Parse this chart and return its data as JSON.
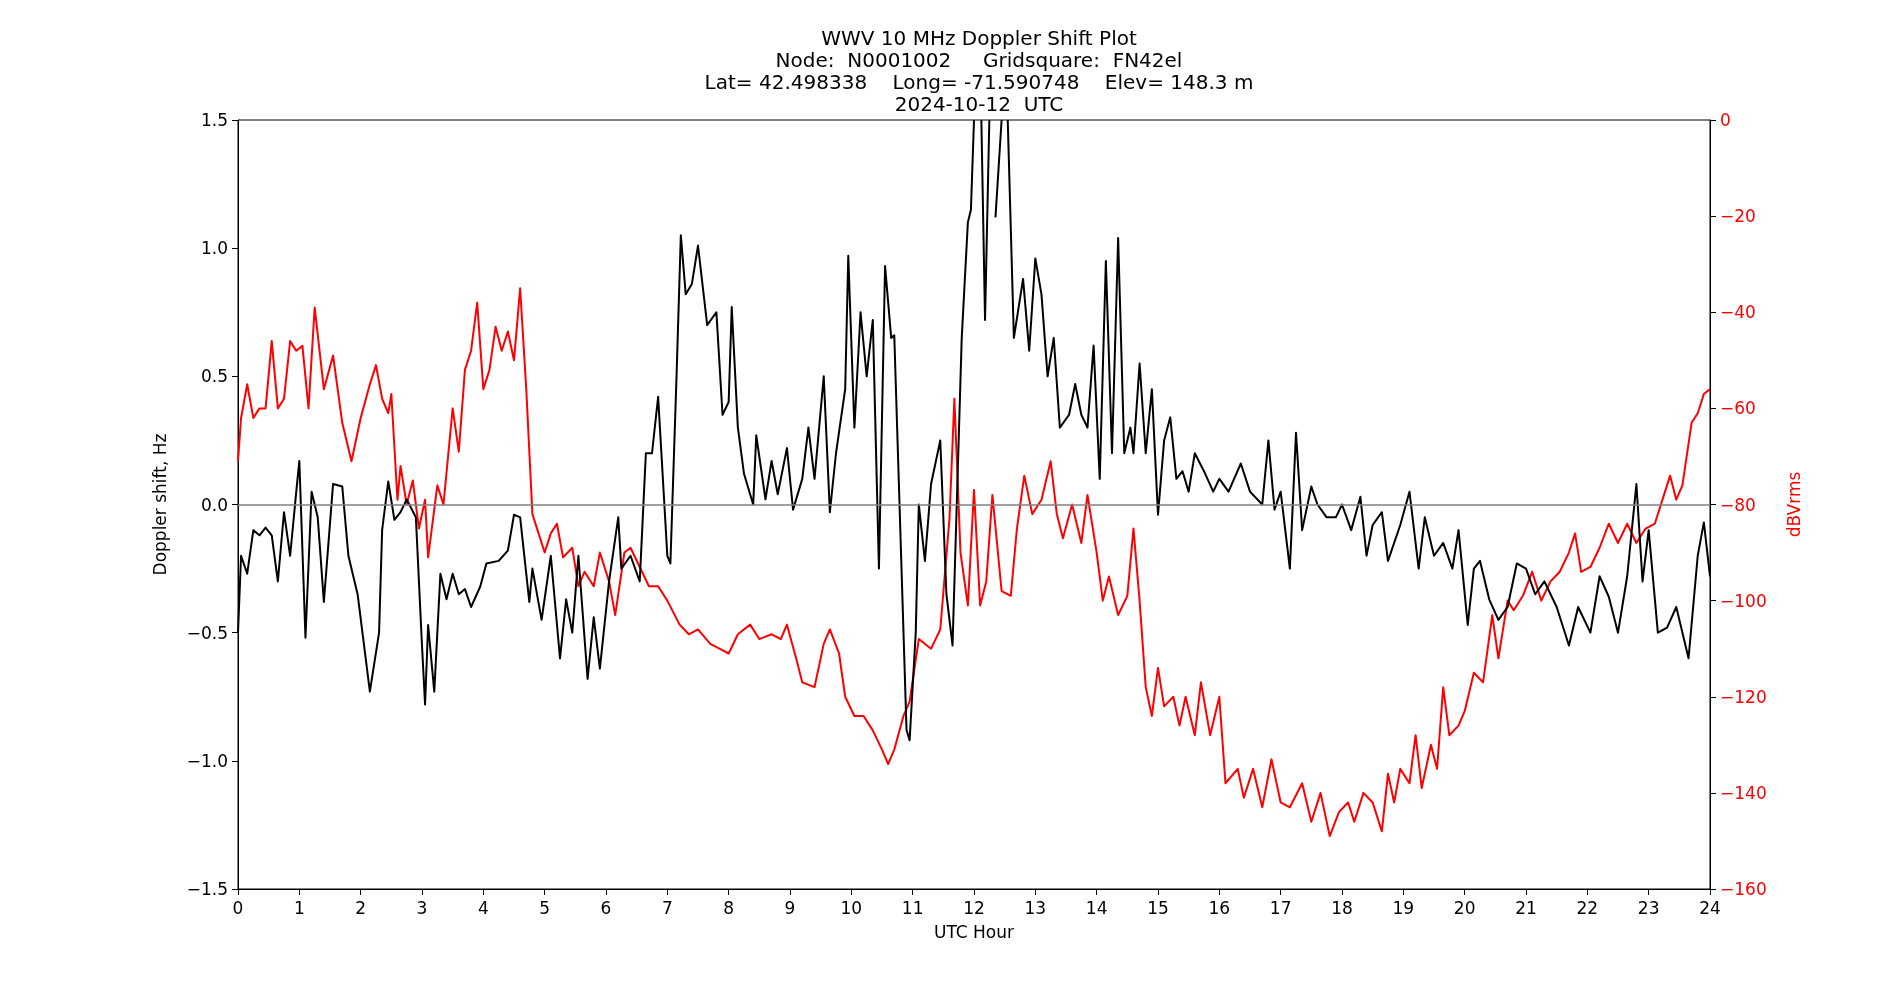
{
  "chart_data": {
    "type": "line",
    "title": "WWV 10 MHz Doppler Shift Plot\nNode:  N0001002     Gridsquare:  FN42el\nLat= 42.498338    Long= -71.590748    Elev= 148.3 m\n2024-10-12  UTC",
    "xlabel": "UTC Hour",
    "ylabel": "Doppler shift, Hz",
    "y2label": "dBVrms",
    "xlim": [
      0,
      24
    ],
    "xticks": [
      0,
      1,
      2,
      3,
      4,
      5,
      6,
      7,
      8,
      9,
      10,
      11,
      12,
      13,
      14,
      15,
      16,
      17,
      18,
      19,
      20,
      21,
      22,
      23,
      24
    ],
    "ylim": [
      -1.5,
      1.5
    ],
    "yticks": [
      {
        "value": -1.5,
        "label": "−1.5"
      },
      {
        "value": -1,
        "label": "−1.0"
      },
      {
        "value": -0.5,
        "label": "−0.5"
      },
      {
        "value": 0,
        "label": "0.0"
      },
      {
        "value": 0.5,
        "label": "0.5"
      },
      {
        "value": 1,
        "label": "1.0"
      },
      {
        "value": 1.5,
        "label": "1.5"
      }
    ],
    "y2lim": [
      -160,
      0
    ],
    "y2ticks": [
      -160,
      -140,
      -120,
      -100,
      -80,
      -60,
      -40,
      -20,
      0
    ],
    "grid": false,
    "marker": "none",
    "line_style": "solid",
    "ref_lines": [
      {
        "axis": "y",
        "value": 0,
        "color": "#808080"
      }
    ],
    "series": [
      {
        "color": "#000000",
        "x": [
          0,
          0.05,
          0.15,
          0.25,
          0.35,
          0.45,
          0.55,
          0.65,
          0.75,
          0.85,
          0.95,
          1.0,
          1.1,
          1.2,
          1.3,
          1.4,
          1.55,
          1.7,
          1.8,
          1.95,
          2.15,
          2.3,
          2.35,
          2.45,
          2.55,
          2.65,
          2.75,
          2.9,
          3.0,
          3.05,
          3.1,
          3.2,
          3.3,
          3.4,
          3.5,
          3.6,
          3.7,
          3.8,
          3.95,
          4.05,
          4.25,
          4.4,
          4.5,
          4.6,
          4.75,
          4.8,
          4.95,
          5.1,
          5.25,
          5.35,
          5.45,
          5.55,
          5.7,
          5.8,
          5.9,
          6.05,
          6.2,
          6.25,
          6.4,
          6.55,
          6.65,
          6.75,
          6.85,
          7.0,
          7.05,
          7.15,
          7.22,
          7.3,
          7.4,
          7.5,
          7.65,
          7.8,
          7.9,
          8.0,
          8.05,
          8.15,
          8.25,
          8.4,
          8.45,
          8.6,
          8.7,
          8.8,
          8.95,
          9.05,
          9.2,
          9.3,
          9.4,
          9.55,
          9.65,
          9.75,
          9.9,
          9.95,
          10.05,
          10.15,
          10.25,
          10.35,
          10.45,
          10.55,
          10.65,
          10.7,
          10.9,
          10.95,
          11.05,
          11.1,
          11.2,
          11.3,
          11.45,
          11.55,
          11.65,
          11.8,
          11.9,
          11.95,
          12.0,
          12.05,
          12.12,
          12.18,
          12.25,
          12.3,
          12.35,
          12.45,
          12.5,
          12.55,
          12.65,
          12.8,
          12.9,
          13.0,
          13.1,
          13.2,
          13.3,
          13.4,
          13.55,
          13.65,
          13.75,
          13.85,
          13.95,
          14.05,
          14.15,
          14.25,
          14.35,
          14.45,
          14.55,
          14.6,
          14.7,
          14.8,
          14.9,
          15.0,
          15.1,
          15.2,
          15.3,
          15.4,
          15.5,
          15.6,
          15.75,
          15.9,
          16.0,
          16.15,
          16.35,
          16.5,
          16.7,
          16.8,
          16.9,
          17.0,
          17.15,
          17.25,
          17.35,
          17.5,
          17.6,
          17.75,
          17.9,
          18.0,
          18.15,
          18.3,
          18.4,
          18.5,
          18.65,
          18.75,
          18.95,
          19.1,
          19.25,
          19.35,
          19.5,
          19.65,
          19.8,
          19.9,
          20.05,
          20.15,
          20.25,
          20.4,
          20.55,
          20.7,
          20.85,
          21.0,
          21.15,
          21.3,
          21.5,
          21.7,
          21.85,
          22.05,
          22.2,
          22.35,
          22.5,
          22.65,
          22.8,
          22.9,
          23.0,
          23.15,
          23.3,
          23.45,
          23.65,
          23.8,
          23.9,
          24.0
        ],
        "values": [
          -0.5,
          -0.2,
          -0.27,
          -0.1,
          -0.12,
          -0.09,
          -0.12,
          -0.3,
          -0.03,
          -0.2,
          0.05,
          0.17,
          -0.52,
          0.05,
          -0.05,
          -0.38,
          0.08,
          0.07,
          -0.2,
          -0.35,
          -0.73,
          -0.5,
          -0.1,
          0.09,
          -0.06,
          -0.03,
          0.02,
          -0.05,
          -0.55,
          -0.78,
          -0.47,
          -0.73,
          -0.27,
          -0.37,
          -0.27,
          -0.35,
          -0.33,
          -0.4,
          -0.32,
          -0.23,
          -0.22,
          -0.18,
          -0.04,
          -0.05,
          -0.38,
          -0.25,
          -0.45,
          -0.2,
          -0.6,
          -0.37,
          -0.5,
          -0.2,
          -0.68,
          -0.44,
          -0.64,
          -0.3,
          -0.05,
          -0.25,
          -0.2,
          -0.3,
          0.2,
          0.2,
          0.42,
          -0.2,
          -0.23,
          0.5,
          1.05,
          0.82,
          0.86,
          1.01,
          0.7,
          0.75,
          0.35,
          0.4,
          0.77,
          0.3,
          0.12,
          0.0,
          0.27,
          0.02,
          0.17,
          0.04,
          0.22,
          -0.02,
          0.1,
          0.3,
          0.1,
          0.5,
          -0.03,
          0.2,
          0.45,
          0.97,
          0.3,
          0.75,
          0.5,
          0.72,
          -0.25,
          0.93,
          0.65,
          0.66,
          -0.88,
          -0.92,
          -0.5,
          0.0,
          -0.22,
          0.08,
          0.25,
          -0.35,
          -0.55,
          0.65,
          1.1,
          1.15,
          1.5,
          null,
          1.5,
          0.72,
          1.5,
          null,
          1.12,
          1.5,
          null,
          1.5,
          0.65,
          0.88,
          0.6,
          0.96,
          0.82,
          0.5,
          0.65,
          0.3,
          0.35,
          0.47,
          0.35,
          0.3,
          0.62,
          0.1,
          0.95,
          0.2,
          1.04,
          0.2,
          0.3,
          0.2,
          0.55,
          0.2,
          0.45,
          -0.04,
          0.25,
          0.34,
          0.1,
          0.13,
          0.05,
          0.2,
          0.13,
          0.05,
          0.1,
          0.05,
          0.16,
          0.05,
          0.0,
          0.25,
          -0.02,
          0.05,
          -0.25,
          0.28,
          -0.1,
          0.07,
          0.0,
          -0.05,
          -0.05,
          0.0,
          -0.1,
          0.03,
          -0.2,
          -0.08,
          -0.03,
          -0.22,
          -0.08,
          0.05,
          -0.25,
          -0.05,
          -0.2,
          -0.15,
          -0.25,
          -0.1,
          -0.47,
          -0.25,
          -0.22,
          -0.37,
          -0.45,
          -0.4,
          -0.23,
          -0.25,
          -0.35,
          -0.3,
          -0.4,
          -0.55,
          -0.4,
          -0.5,
          -0.28,
          -0.36,
          -0.5,
          -0.28,
          0.08,
          -0.3,
          -0.1,
          -0.5,
          -0.48,
          -0.4,
          -0.6,
          -0.2,
          -0.07,
          -0.28
        ]
      },
      {
        "color": "#ff0000",
        "axis": "y2",
        "x": [
          0,
          0.05,
          0.15,
          0.25,
          0.35,
          0.45,
          0.55,
          0.65,
          0.75,
          0.85,
          0.95,
          1.05,
          1.15,
          1.25,
          1.4,
          1.55,
          1.7,
          1.85,
          2.0,
          2.15,
          2.25,
          2.35,
          2.45,
          2.5,
          2.6,
          2.65,
          2.75,
          2.85,
          2.95,
          3.05,
          3.1,
          3.25,
          3.35,
          3.5,
          3.6,
          3.7,
          3.8,
          3.9,
          4.0,
          4.1,
          4.2,
          4.3,
          4.4,
          4.5,
          4.6,
          4.7,
          4.8,
          5.0,
          5.1,
          5.2,
          5.3,
          5.45,
          5.55,
          5.65,
          5.8,
          5.9,
          6.05,
          6.15,
          6.3,
          6.4,
          6.55,
          6.7,
          6.85,
          7.0,
          7.2,
          7.35,
          7.5,
          7.7,
          7.85,
          8.0,
          8.15,
          8.35,
          8.5,
          8.7,
          8.85,
          8.95,
          9.1,
          9.2,
          9.4,
          9.55,
          9.65,
          9.8,
          9.9,
          10.05,
          10.2,
          10.35,
          10.5,
          10.6,
          10.7,
          10.85,
          10.95,
          11.1,
          11.3,
          11.45,
          11.6,
          11.68,
          11.78,
          11.9,
          12.0,
          12.1,
          12.2,
          12.3,
          12.45,
          12.6,
          12.7,
          12.82,
          12.95,
          13.1,
          13.25,
          13.35,
          13.45,
          13.6,
          13.75,
          13.85,
          14.0,
          14.1,
          14.2,
          14.35,
          14.5,
          14.6,
          14.7,
          14.8,
          14.9,
          15.0,
          15.1,
          15.25,
          15.35,
          15.45,
          15.6,
          15.7,
          15.85,
          16.0,
          16.1,
          16.3,
          16.4,
          16.55,
          16.7,
          16.85,
          17.0,
          17.15,
          17.35,
          17.5,
          17.65,
          17.8,
          17.95,
          18.1,
          18.2,
          18.35,
          18.5,
          18.65,
          18.75,
          18.85,
          18.95,
          19.1,
          19.2,
          19.3,
          19.45,
          19.55,
          19.65,
          19.75,
          19.9,
          20.0,
          20.15,
          20.3,
          20.45,
          20.55,
          20.7,
          20.8,
          20.95,
          21.1,
          21.25,
          21.4,
          21.55,
          21.7,
          21.8,
          21.9,
          22.05,
          22.2,
          22.35,
          22.5,
          22.65,
          22.8,
          22.95,
          23.1,
          23.25,
          23.35,
          23.45,
          23.55,
          23.7,
          23.8,
          23.9,
          24.0
        ],
        "values": [
          -71,
          -62,
          -55,
          -62,
          -60,
          -60,
          -46,
          -60,
          -58,
          -46,
          -48,
          -47,
          -60,
          -39,
          -56,
          -49,
          -63,
          -71,
          -62,
          -55,
          -51,
          -58,
          -61,
          -57,
          -79,
          -72,
          -80,
          -75,
          -85,
          -79,
          -91,
          -76,
          -80,
          -60,
          -69,
          -52,
          -48,
          -38,
          -56,
          -52,
          -43,
          -48,
          -44,
          -50,
          -35,
          -56,
          -82,
          -90,
          -86,
          -84,
          -91,
          -89,
          -97,
          -94,
          -97,
          -90,
          -96,
          -103,
          -90,
          -89,
          -93,
          -97,
          -97,
          -100,
          -105,
          -107,
          -106,
          -109,
          -110,
          -111,
          -107,
          -105,
          -108,
          -107,
          -108,
          -105,
          -112,
          -117,
          -118,
          -109,
          -106,
          -111,
          -120,
          -124,
          -124,
          -127,
          -131,
          -134,
          -131,
          -124,
          -121,
          -108,
          -110,
          -106,
          -83,
          -58,
          -90,
          -101,
          -77,
          -101,
          -96,
          -78,
          -98,
          -99,
          -85,
          -74,
          -82,
          -79,
          -71,
          -82,
          -87,
          -80,
          -88,
          -78,
          -90,
          -100,
          -95,
          -103,
          -99,
          -85,
          -100,
          -118,
          -124,
          -114,
          -122,
          -120,
          -126,
          -120,
          -128,
          -117,
          -128,
          -120,
          -138,
          -135,
          -141,
          -135,
          -143,
          -133,
          -142,
          -143,
          -138,
          -146,
          -140,
          -149,
          -144,
          -142,
          -146,
          -140,
          -142,
          -148,
          -136,
          -142,
          -135,
          -138,
          -128,
          -139,
          -130,
          -135,
          -118,
          -128,
          -126,
          -123,
          -115,
          -117,
          -103,
          -112,
          -100,
          -102,
          -99,
          -94,
          -100,
          -96,
          -94,
          -90,
          -86,
          -94,
          -93,
          -89,
          -84,
          -88,
          -84,
          -88,
          -85,
          -84,
          -78,
          -74,
          -79,
          -76,
          -63,
          -61,
          -57,
          -56
        ]
      }
    ]
  }
}
